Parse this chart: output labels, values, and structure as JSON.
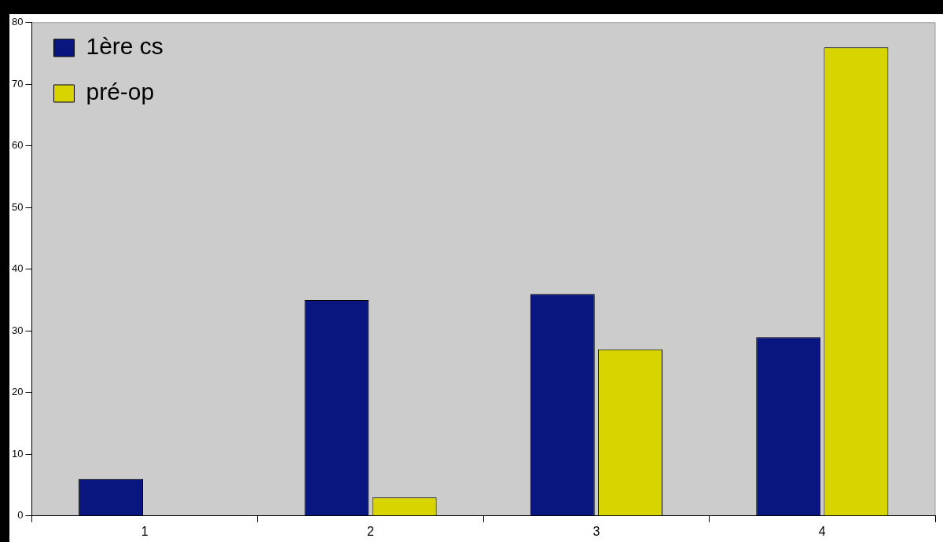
{
  "chart_data": {
    "type": "bar",
    "categories": [
      "1",
      "2",
      "3",
      "4"
    ],
    "series": [
      {
        "name": "1ère cs",
        "color": "#0a1680",
        "values": [
          6,
          35,
          36,
          29
        ]
      },
      {
        "name": "pré-op",
        "color": "#d8d400",
        "values": [
          0,
          3,
          27,
          76
        ]
      }
    ],
    "ylim": [
      0,
      80
    ],
    "yticks": [
      0,
      10,
      20,
      30,
      40,
      50,
      60,
      70,
      80
    ],
    "grid": false,
    "legend": "top left"
  }
}
